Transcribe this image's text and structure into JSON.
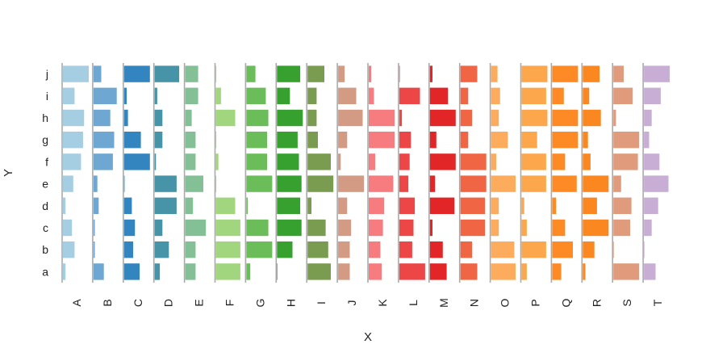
{
  "chart_data": {
    "type": "bar",
    "orientation": "horizontal",
    "layout": "small-multiples",
    "xlabel": "X",
    "ylabel": "Y",
    "panels": [
      "A",
      "B",
      "C",
      "D",
      "E",
      "F",
      "G",
      "H",
      "I",
      "J",
      "K",
      "L",
      "M",
      "N",
      "O",
      "P",
      "Q",
      "R",
      "S",
      "T"
    ],
    "categories": [
      "a",
      "b",
      "c",
      "d",
      "e",
      "f",
      "g",
      "h",
      "i",
      "j"
    ],
    "xlim": [
      0,
      1
    ],
    "colors": [
      "#a6cee3",
      "#6ea7d2",
      "#3385c0",
      "#4794a8",
      "#84c096",
      "#a1d67e",
      "#6bbd5a",
      "#36a12f",
      "#799c50",
      "#d39b84",
      "#f67c7f",
      "#ec4647",
      "#e22527",
      "#f06645",
      "#fdac5d",
      "#fda74d",
      "#fd8a25",
      "#fb8720",
      "#df9b7b",
      "#c8aed5"
    ],
    "series": [
      {
        "name": "A",
        "values": [
          0.1,
          0.45,
          0.35,
          0.1,
          0.4,
          0.7,
          0.78,
          0.82,
          0.45,
          1.0
        ]
      },
      {
        "name": "B",
        "values": [
          0.4,
          0.05,
          0.05,
          0.2,
          0.15,
          0.75,
          0.8,
          0.65,
          0.9,
          0.3
        ]
      },
      {
        "name": "C",
        "values": [
          0.6,
          0.35,
          0.42,
          0.3,
          0.02,
          1.0,
          0.65,
          0.15,
          0.1,
          1.0
        ]
      },
      {
        "name": "D",
        "values": [
          0.2,
          0.55,
          0.3,
          0.85,
          0.85,
          0.05,
          0.3,
          0.3,
          0.1,
          0.95
        ]
      },
      {
        "name": "E",
        "values": [
          0.4,
          0.4,
          0.8,
          0.3,
          0.7,
          0.4,
          0.4,
          0.25,
          0.5,
          0.5
        ]
      },
      {
        "name": "F",
        "values": [
          0.95,
          0.95,
          0.95,
          0.75,
          0.02,
          0.1,
          0.02,
          0.75,
          0.2,
          0.02
        ]
      },
      {
        "name": "G",
        "values": [
          0.15,
          1.0,
          0.85,
          0.05,
          1.0,
          0.8,
          0.8,
          0.85,
          0.75,
          0.35
        ]
      },
      {
        "name": "H",
        "values": [
          0.02,
          0.6,
          0.95,
          0.9,
          0.95,
          0.85,
          0.8,
          1.0,
          0.5,
          0.9
        ]
      },
      {
        "name": "I",
        "values": [
          0.9,
          0.8,
          0.7,
          0.15,
          1.0,
          0.9,
          0.4,
          0.35,
          0.35,
          0.65
        ]
      },
      {
        "name": "J",
        "values": [
          0.45,
          0.45,
          0.5,
          0.35,
          1.0,
          0.1,
          0.35,
          0.95,
          0.7,
          0.25
        ]
      },
      {
        "name": "K",
        "values": [
          0.5,
          0.45,
          0.55,
          0.6,
          0.95,
          0.25,
          1.0,
          1.0,
          0.2,
          0.1
        ]
      },
      {
        "name": "L",
        "values": [
          1.0,
          0.5,
          0.55,
          0.6,
          0.35,
          0.4,
          0.45,
          0.1,
          0.8,
          0.02
        ]
      },
      {
        "name": "M",
        "values": [
          0.65,
          0.5,
          0.1,
          0.95,
          0.2,
          1.0,
          0.25,
          1.0,
          0.7,
          0.1
        ]
      },
      {
        "name": "N",
        "values": [
          0.65,
          0.45,
          0.95,
          0.95,
          1.0,
          1.0,
          0.3,
          0.45,
          0.3,
          0.65
        ]
      },
      {
        "name": "O",
        "values": [
          0.95,
          0.9,
          0.3,
          0.3,
          0.95,
          0.2,
          0.65,
          0.3,
          0.35,
          0.25
        ]
      },
      {
        "name": "P",
        "values": [
          0.2,
          0.95,
          0.2,
          0.1,
          0.95,
          0.95,
          0.6,
          1.0,
          0.95,
          1.0
        ]
      },
      {
        "name": "Q",
        "values": [
          0.35,
          0.8,
          0.5,
          0.15,
          0.95,
          0.5,
          1.0,
          1.0,
          0.45,
          1.0
        ]
      },
      {
        "name": "R",
        "values": [
          0.1,
          0.45,
          1.0,
          0.55,
          1.0,
          0.3,
          0.2,
          0.7,
          0.25,
          0.65
        ]
      },
      {
        "name": "S",
        "values": [
          1.0,
          0.02,
          0.65,
          0.7,
          0.3,
          0.95,
          1.0,
          0.1,
          0.75,
          0.4
        ]
      },
      {
        "name": "T",
        "values": [
          0.45,
          0.02,
          0.3,
          0.55,
          0.95,
          0.6,
          0.2,
          0.3,
          0.65,
          1.0
        ]
      }
    ],
    "grid": false,
    "legend": "none"
  }
}
